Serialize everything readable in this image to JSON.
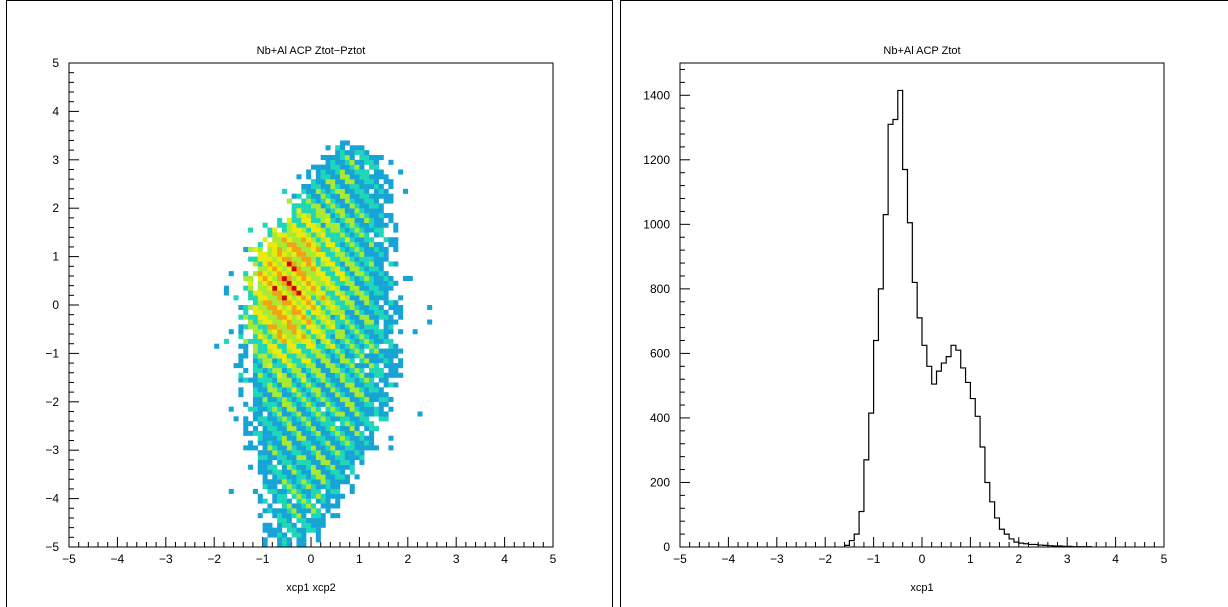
{
  "chart_data": [
    {
      "type": "heatmap",
      "title": "Nb+Al ACP Ztot−Pztot",
      "xlabel": "xcp1 xcp2",
      "ylabel": "",
      "xlim": [
        -5,
        5
      ],
      "ylim": [
        -5,
        5
      ],
      "xticks": [
        "−5",
        "−4",
        "−3",
        "−2",
        "−1",
        "0",
        "1",
        "2",
        "3",
        "4",
        "5"
      ],
      "yticks": [
        "−5",
        "−4",
        "−3",
        "−2",
        "−1",
        "0",
        "1",
        "2",
        "3",
        "4",
        "5"
      ],
      "bins": 100,
      "grid": false,
      "colors": {
        "low": "#16a3d6",
        "low_mid": "#1ed6b8",
        "mid": "#a6ea34",
        "mid_high": "#eaea0b",
        "high": "#f0a314",
        "peak": "#c80a0a",
        "max": "#7a0000"
      },
      "density_model": {
        "region_y": [
          -5,
          3.55
        ],
        "left_edge": [
          [
            -5,
            -0.95
          ],
          [
            -4,
            -1.15
          ],
          [
            -3,
            -1.38
          ],
          [
            -2,
            -1.45
          ],
          [
            -1,
            -1.48
          ],
          [
            0,
            -1.45
          ],
          [
            1,
            -1.3
          ],
          [
            2,
            -0.55
          ],
          [
            3,
            0.1
          ],
          [
            3.55,
            0.7
          ]
        ],
        "right_edge": [
          [
            -5,
            0.1
          ],
          [
            -4,
            0.8
          ],
          [
            -3,
            1.4
          ],
          [
            -2,
            1.8
          ],
          [
            -1,
            1.95
          ],
          [
            0,
            1.95
          ],
          [
            1,
            1.75
          ],
          [
            2,
            1.75
          ],
          [
            3,
            1.7
          ],
          [
            3.55,
            0.75
          ]
        ],
        "stripe_period_x": 0.42,
        "stripe_slope": 1.0,
        "hot_spot": {
          "x": -0.55,
          "y": 0.5,
          "sigma_x": 0.7,
          "sigma_y": 1.1
        },
        "seed": 1234
      }
    },
    {
      "type": "line",
      "style": "step",
      "title": "Nb+Al ACP Ztot",
      "xlabel": "xcp1",
      "ylabel": "",
      "xlim": [
        -5,
        5
      ],
      "ylim": [
        0,
        1500
      ],
      "xticks": [
        "−5",
        "−4",
        "−3",
        "−2",
        "−1",
        "0",
        "1",
        "2",
        "3",
        "4",
        "5"
      ],
      "yticks": [
        "0",
        "200",
        "400",
        "600",
        "800",
        "1000",
        "1200",
        "1400"
      ],
      "grid": false,
      "bin_width": 0.1,
      "bins_x_start": [
        -1.6,
        -1.5,
        -1.4,
        -1.3,
        -1.2,
        -1.1,
        -1.0,
        -0.9,
        -0.8,
        -0.7,
        -0.6,
        -0.5,
        -0.4,
        -0.3,
        -0.2,
        -0.1,
        0.0,
        0.1,
        0.2,
        0.3,
        0.4,
        0.5,
        0.6,
        0.7,
        0.8,
        0.9,
        1.0,
        1.1,
        1.2,
        1.3,
        1.4,
        1.5,
        1.6,
        1.7,
        1.8,
        1.9,
        2.0,
        2.1,
        2.2,
        2.3,
        2.4,
        2.5,
        2.6,
        2.7,
        2.8,
        2.9,
        3.0,
        3.1,
        3.2,
        3.3,
        3.4
      ],
      "values": [
        5,
        20,
        40,
        110,
        270,
        415,
        640,
        800,
        1030,
        1310,
        1325,
        1415,
        1170,
        1005,
        820,
        710,
        625,
        560,
        505,
        545,
        570,
        590,
        625,
        610,
        555,
        510,
        460,
        405,
        310,
        200,
        140,
        90,
        55,
        40,
        25,
        15,
        12,
        10,
        8,
        8,
        6,
        5,
        4,
        3,
        3,
        2,
        2,
        1,
        1,
        1,
        1
      ]
    }
  ]
}
